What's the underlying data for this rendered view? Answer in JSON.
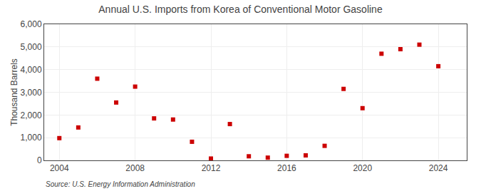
{
  "chart_data": {
    "type": "scatter",
    "title": "Annual U.S. Imports from Korea of Conventional Motor Gasoline",
    "ylabel": "Thousand Barrels",
    "annotations": [
      "Source: U.S. Energy Information Administration"
    ],
    "x": [
      2004,
      2005,
      2006,
      2007,
      2008,
      2009,
      2010,
      2011,
      2012,
      2013,
      2014,
      2015,
      2016,
      2017,
      2018,
      2019,
      2020,
      2021,
      2022,
      2023,
      2024
    ],
    "values": [
      980,
      1450,
      3600,
      2550,
      3250,
      1850,
      1800,
      820,
      80,
      1600,
      180,
      120,
      200,
      220,
      640,
      3150,
      2300,
      4700,
      4900,
      5100,
      4150
    ],
    "color": "#cc0000",
    "marker": "square",
    "xlim": [
      2003.2,
      2025.5
    ],
    "xticks": [
      2004,
      2008,
      2012,
      2016,
      2020,
      2024
    ],
    "ylim": [
      0,
      6000
    ],
    "yticks": [
      0,
      {
        "value": 1000,
        "label": "1,000"
      },
      {
        "value": 2000,
        "label": "2,000"
      },
      {
        "value": 3000,
        "label": "3,000"
      },
      {
        "value": 4000,
        "label": "4,000"
      },
      {
        "value": 5000,
        "label": "5,000"
      },
      {
        "value": 6000,
        "label": "6,000"
      }
    ],
    "grid": true
  }
}
